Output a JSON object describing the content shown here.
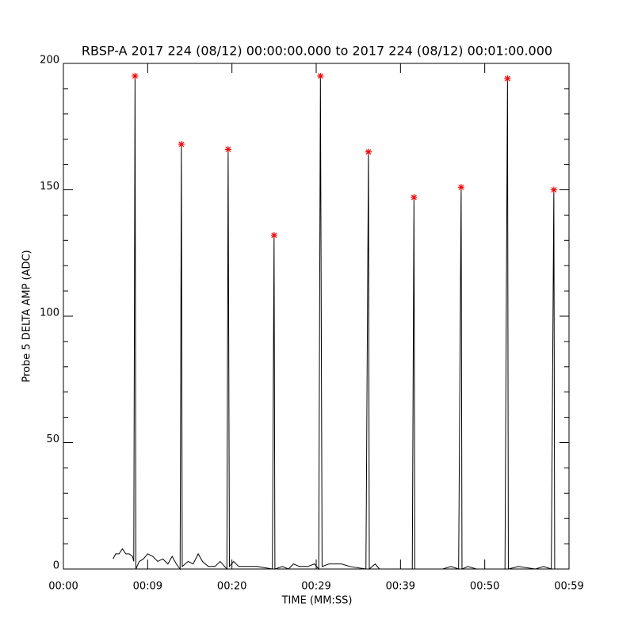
{
  "chart_data": {
    "type": "line",
    "title": "RBSP-A 2017 224 (08/12) 00:00:00.000 to 2017 224 (08/12) 00:01:00.000",
    "x_label": "TIME (MM:SS)",
    "y_label": "Probe 5 DELTA AMP (ADC)",
    "xlim": [
      0,
      60
    ],
    "xticks": [
      {
        "value": 0,
        "label": "00:00"
      },
      {
        "value": 10,
        "label": "00:09"
      },
      {
        "value": 20,
        "label": "00:20"
      },
      {
        "value": 30,
        "label": "00:29"
      },
      {
        "value": 40,
        "label": "00:39"
      },
      {
        "value": 50,
        "label": "00:50"
      },
      {
        "value": 60,
        "label": "00:59"
      }
    ],
    "ylim": [
      0,
      200
    ],
    "yticks": [
      0,
      50,
      100,
      150,
      200
    ],
    "yminorticks": [
      10,
      20,
      30,
      40,
      60,
      70,
      80,
      90,
      110,
      120,
      130,
      140,
      160,
      170,
      180,
      190
    ],
    "series": [
      {
        "color": "#000000",
        "x": [
          5.9,
          6.2,
          6.6,
          7.0,
          7.4,
          7.8,
          8.2,
          8.35,
          8.5,
          8.6,
          9.0,
          9.5,
          10.0,
          10.6,
          11.2,
          11.8,
          12.4,
          12.9,
          13.4,
          13.85,
          14.0,
          14.1,
          14.8,
          15.4,
          16.0,
          16.5,
          17.2,
          18.0,
          18.6,
          19.4,
          19.55,
          19.7,
          20.2,
          20.8,
          22.0,
          23.0,
          24.8,
          25.0,
          25.1,
          26.0,
          26.7,
          27.3,
          28.0,
          29.0,
          29.8,
          30.3,
          30.5,
          30.7,
          31.5,
          33.0,
          34.0,
          35.9,
          36.2,
          36.3,
          37.0,
          37.5,
          39.0,
          40.0,
          41.4,
          41.6,
          41.7,
          43.0,
          45.0,
          46.0,
          46.9,
          47.2,
          47.3,
          48.0,
          49.0,
          51.0,
          52.4,
          52.7,
          52.8,
          54.0,
          56.0,
          57.0,
          57.9,
          58.2,
          58.3,
          59.0
        ],
        "values": [
          4,
          6,
          6,
          8,
          6,
          6,
          5,
          3,
          195,
          0,
          3,
          4,
          6,
          5,
          3,
          4,
          2,
          5,
          2,
          0,
          168,
          1,
          3,
          2,
          6,
          3,
          1,
          1,
          3,
          0,
          166,
          1,
          3,
          1,
          1,
          1,
          0,
          132,
          0,
          1,
          0,
          2,
          1,
          1,
          2,
          0,
          195,
          1,
          2,
          2,
          1,
          0,
          165,
          0,
          2,
          0,
          0,
          0,
          0,
          147,
          0,
          0,
          0,
          1,
          0,
          151,
          0,
          1,
          0,
          0,
          0,
          194,
          0,
          1,
          0,
          1,
          0,
          150,
          0,
          0
        ]
      },
      {
        "color": "#ff0000",
        "marker": "*",
        "x": [
          8.5,
          14.0,
          19.55,
          25.0,
          30.5,
          36.2,
          41.6,
          47.2,
          52.7,
          58.2
        ],
        "values": [
          195,
          168,
          166,
          132,
          195,
          165,
          147,
          151,
          194,
          150
        ]
      }
    ]
  }
}
